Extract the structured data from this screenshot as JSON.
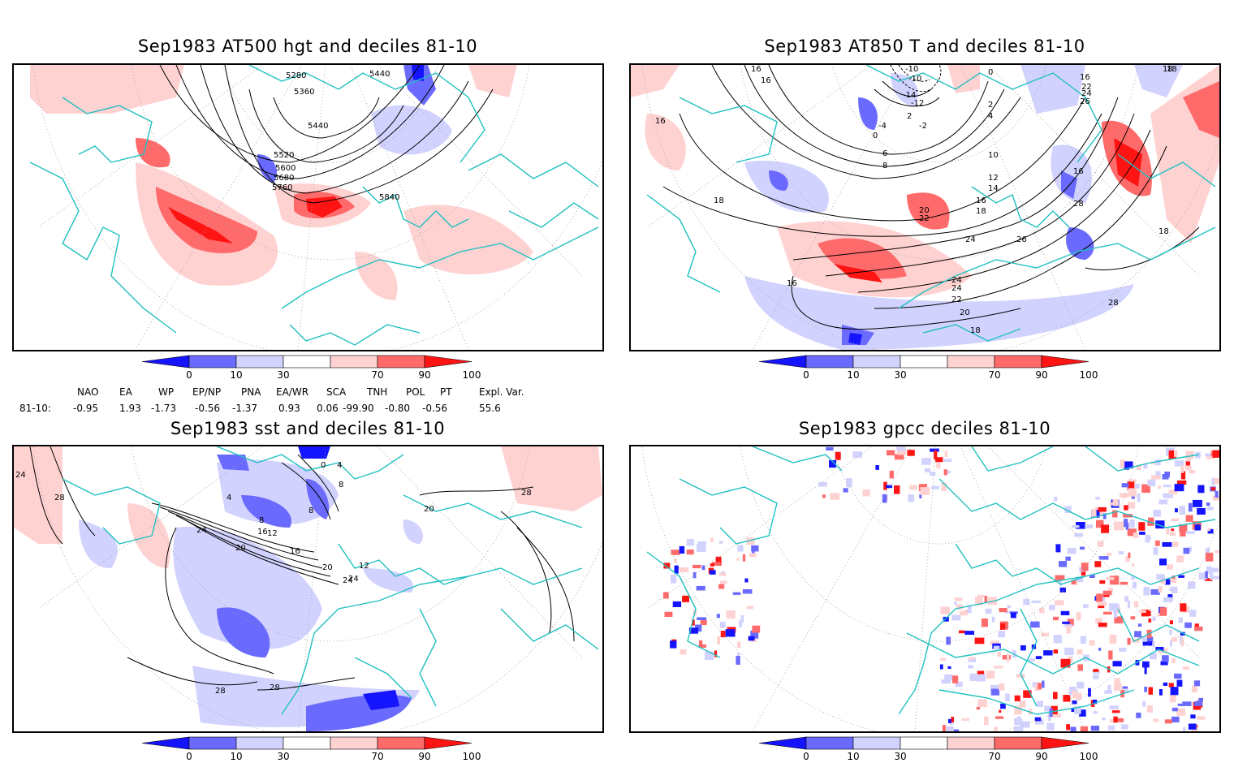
{
  "panels": [
    {
      "title": "Sep1983 AT500 hgt and deciles 81-10",
      "contour_labels": [
        "5280",
        "5360",
        "5440",
        "5440",
        "5520",
        "5600",
        "5680",
        "5760",
        "5840"
      ]
    },
    {
      "title": "Sep1983 AT850 T and deciles 81-10",
      "contour_labels": [
        "16",
        "16",
        "16",
        "18",
        "18",
        "16",
        "0",
        "-10",
        "-10",
        "-14",
        "-12",
        "-4",
        "-2",
        "0",
        "2",
        "2",
        "4",
        "6",
        "8",
        "10",
        "12",
        "14",
        "16",
        "18",
        "20",
        "22",
        "24",
        "26",
        "24",
        "24",
        "22",
        "20",
        "18",
        "16",
        "28",
        "28",
        "18",
        "16",
        "22",
        "24",
        "26",
        "18"
      ]
    },
    {
      "title": "Sep1983 sst and deciles 81-10",
      "contour_labels": [
        "24",
        "28",
        "4",
        "8",
        "12",
        "16",
        "20",
        "24",
        "24",
        "0",
        "4",
        "8",
        "8",
        "12",
        "16",
        "20",
        "24",
        "28",
        "28",
        "28",
        "20"
      ]
    },
    {
      "title": "Sep1983 gpcc deciles 81-10",
      "contour_labels": []
    }
  ],
  "colorbar": {
    "labels": [
      "0",
      "10",
      "30",
      "70",
      "90",
      "100"
    ],
    "colors": [
      "#1414ff",
      "#6a6aff",
      "#d2d2ff",
      "#ffffff",
      "#ffd2d2",
      "#ff6a6a",
      "#ff1414"
    ]
  },
  "indices": {
    "row_label": "81-10:",
    "names": [
      "NAO",
      "EA",
      "WP",
      "EP/NP",
      "PNA",
      "EA/WR",
      "SCA",
      "TNH",
      "POL",
      "PT",
      "Expl. Var."
    ],
    "values": [
      "-0.95",
      "1.93",
      "-1.73",
      "-0.56",
      "-1.37",
      "0.93",
      "0.06",
      "-99.90",
      "-0.80",
      "-0.56",
      "55.6"
    ]
  }
}
